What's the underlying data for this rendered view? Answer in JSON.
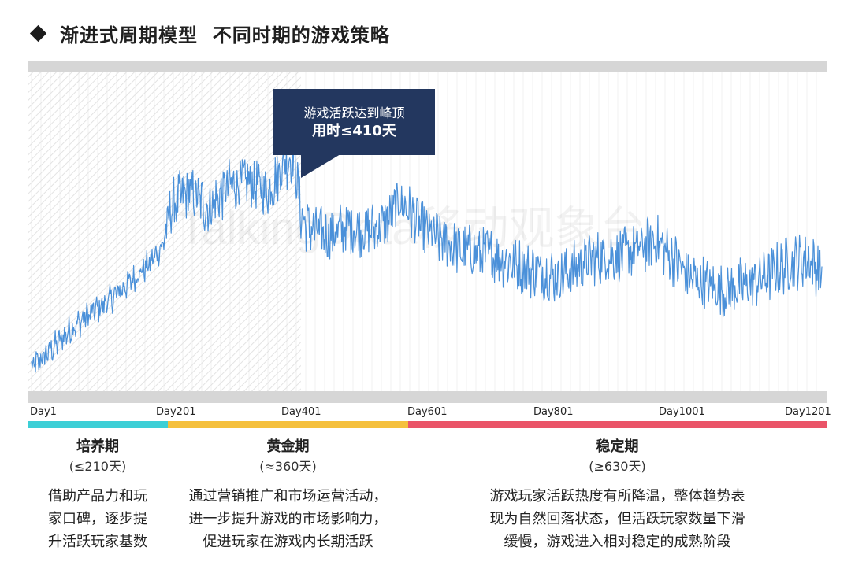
{
  "header": {
    "title": "渐进式周期模型  不同时期的游戏策略"
  },
  "callout": {
    "line1": "游戏活跃达到峰顶",
    "line2": "用时≤410天"
  },
  "watermark": "TalkingData移动观象台",
  "colors": {
    "line": "#4a90d9",
    "callout_bg": "#23375f",
    "phase1": "#3ccfd6",
    "phase2": "#f5c03d",
    "phase3": "#ea5468",
    "frame": "#d6d6d6",
    "hatch": "#e6e6e6"
  },
  "chart_data": {
    "type": "line",
    "x_unit": "day",
    "xlim": [
      1,
      1201
    ],
    "tick_labels": [
      "Day1",
      "Day201",
      "Day401",
      "Day601",
      "Day801",
      "Day1001",
      "Day1201"
    ],
    "highlight_range": [
      1,
      410
    ],
    "series": [
      {
        "day": [
          1,
          30,
          60,
          90,
          120,
          150,
          180,
          200,
          215,
          240,
          270,
          300,
          330,
          360,
          385,
          400,
          410,
          420,
          450,
          480,
          510,
          540,
          560,
          600,
          650,
          700,
          750,
          800,
          850,
          900,
          950,
          1000,
          1050,
          1100,
          1150,
          1180,
          1201
        ],
        "value": [
          10,
          18,
          27,
          34,
          40,
          48,
          56,
          64,
          82,
          88,
          80,
          90,
          92,
          88,
          100,
          104,
          78,
          72,
          68,
          72,
          70,
          74,
          84,
          70,
          62,
          60,
          54,
          50,
          58,
          60,
          66,
          50,
          44,
          48,
          56,
          58,
          52
        ]
      }
    ]
  },
  "phases": [
    {
      "name": "培养期",
      "duration": "(≤210天)",
      "desc": [
        "借助产品力和玩",
        "家口碑，逐步提",
        "升活跃玩家基数"
      ]
    },
    {
      "name": "黄金期",
      "duration": "(≈360天)",
      "desc": [
        "通过营销推广和市场运营活动，",
        "进一步提升游戏的市场影响力，",
        "促进玩家在游戏内长期活跃"
      ]
    },
    {
      "name": "稳定期",
      "duration": "(≥630天)",
      "desc": [
        "游戏玩家活跃热度有所降温，整体趋势表",
        "现为自然回落状态，但活跃玩家数量下滑",
        "缓慢，游戏进入相对稳定的成熟阶段"
      ]
    }
  ]
}
